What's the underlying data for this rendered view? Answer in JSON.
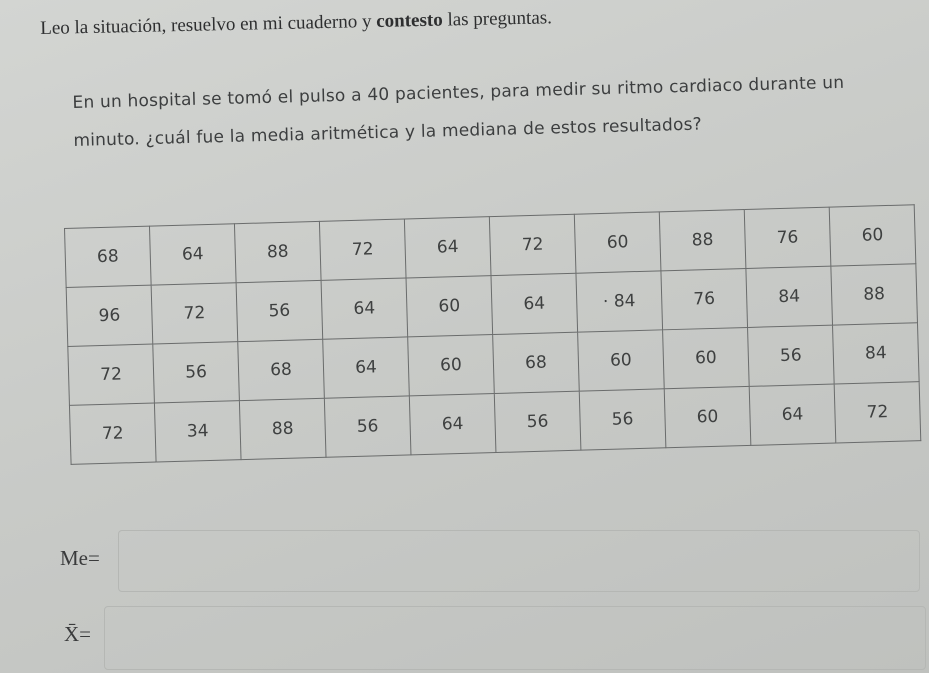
{
  "instruction": {
    "pre": "Leo la situación, resuelvo en mi cuaderno y ",
    "bold": "contesto",
    "post": " las preguntas."
  },
  "problem_text": "En un hospital se tomó el pulso a 40 pacientes, para medir su ritmo cardiaco durante un minuto. ¿cuál fue la media aritmética y la mediana de estos resultados?",
  "table": {
    "rows": [
      [
        "68",
        "64",
        "88",
        "72",
        "64",
        "72",
        "60",
        "88",
        "76",
        "60"
      ],
      [
        "96",
        "72",
        "56",
        "64",
        "60",
        "64",
        "· 84",
        "76",
        "84",
        "88"
      ],
      [
        "72",
        "56",
        "68",
        "64",
        "60",
        "68",
        "60",
        "60",
        "56",
        "84"
      ],
      [
        "72",
        "34",
        "88",
        "56",
        "64",
        "56",
        "56",
        "60",
        "64",
        "72"
      ]
    ]
  },
  "answers": {
    "median_label": "Me=",
    "mean_label": "X̄="
  }
}
